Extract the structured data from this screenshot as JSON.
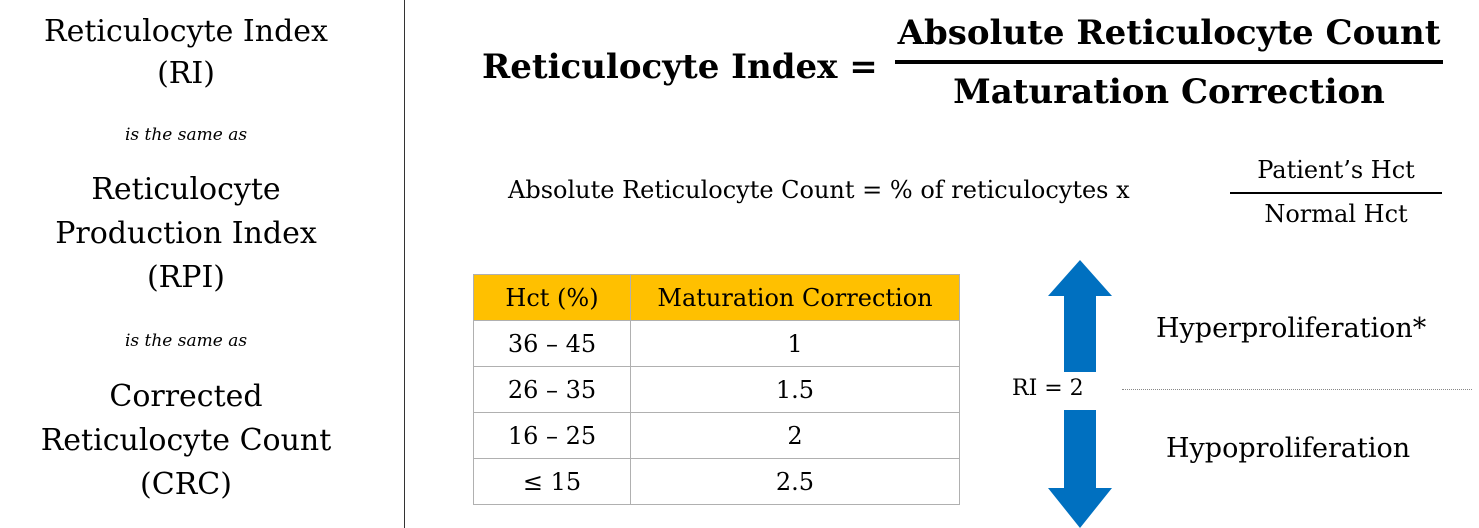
{
  "synonyms": {
    "terms": [
      {
        "name": "Reticulocyte Index",
        "abbr": "(RI)"
      },
      {
        "name_line1": "Reticulocyte",
        "name_line2": "Production Index",
        "abbr": "(RPI)"
      },
      {
        "name_line1": "Corrected",
        "name_line2": "Reticulocyte Count",
        "abbr": "(CRC)"
      }
    ],
    "connector": "is the same as"
  },
  "formula_main": {
    "lhs": "Reticulocyte Index =",
    "numerator": "Absolute Reticulocyte Count",
    "denominator": "Maturation Correction"
  },
  "formula_absolute": {
    "lhs": "Absolute Reticulocyte Count = % of reticulocytes x",
    "numerator": "Patient’s Hct",
    "denominator": "Normal Hct"
  },
  "table": {
    "headers": [
      "Hct (%)",
      "Maturation Correction"
    ],
    "rows": [
      [
        "36 – 45",
        "1"
      ],
      [
        "26 – 35",
        "1.5"
      ],
      [
        "16 – 25",
        "2"
      ],
      [
        "≤ 15",
        "2.5"
      ]
    ],
    "header_color": "#ffc000"
  },
  "interpretation": {
    "threshold_label": "RI = 2",
    "above": "Hyperproliferation*",
    "below": "Hypoproliferation",
    "arrow_color": "#0070c0",
    "icons": [
      "arrow-up-icon",
      "arrow-down-icon"
    ]
  }
}
